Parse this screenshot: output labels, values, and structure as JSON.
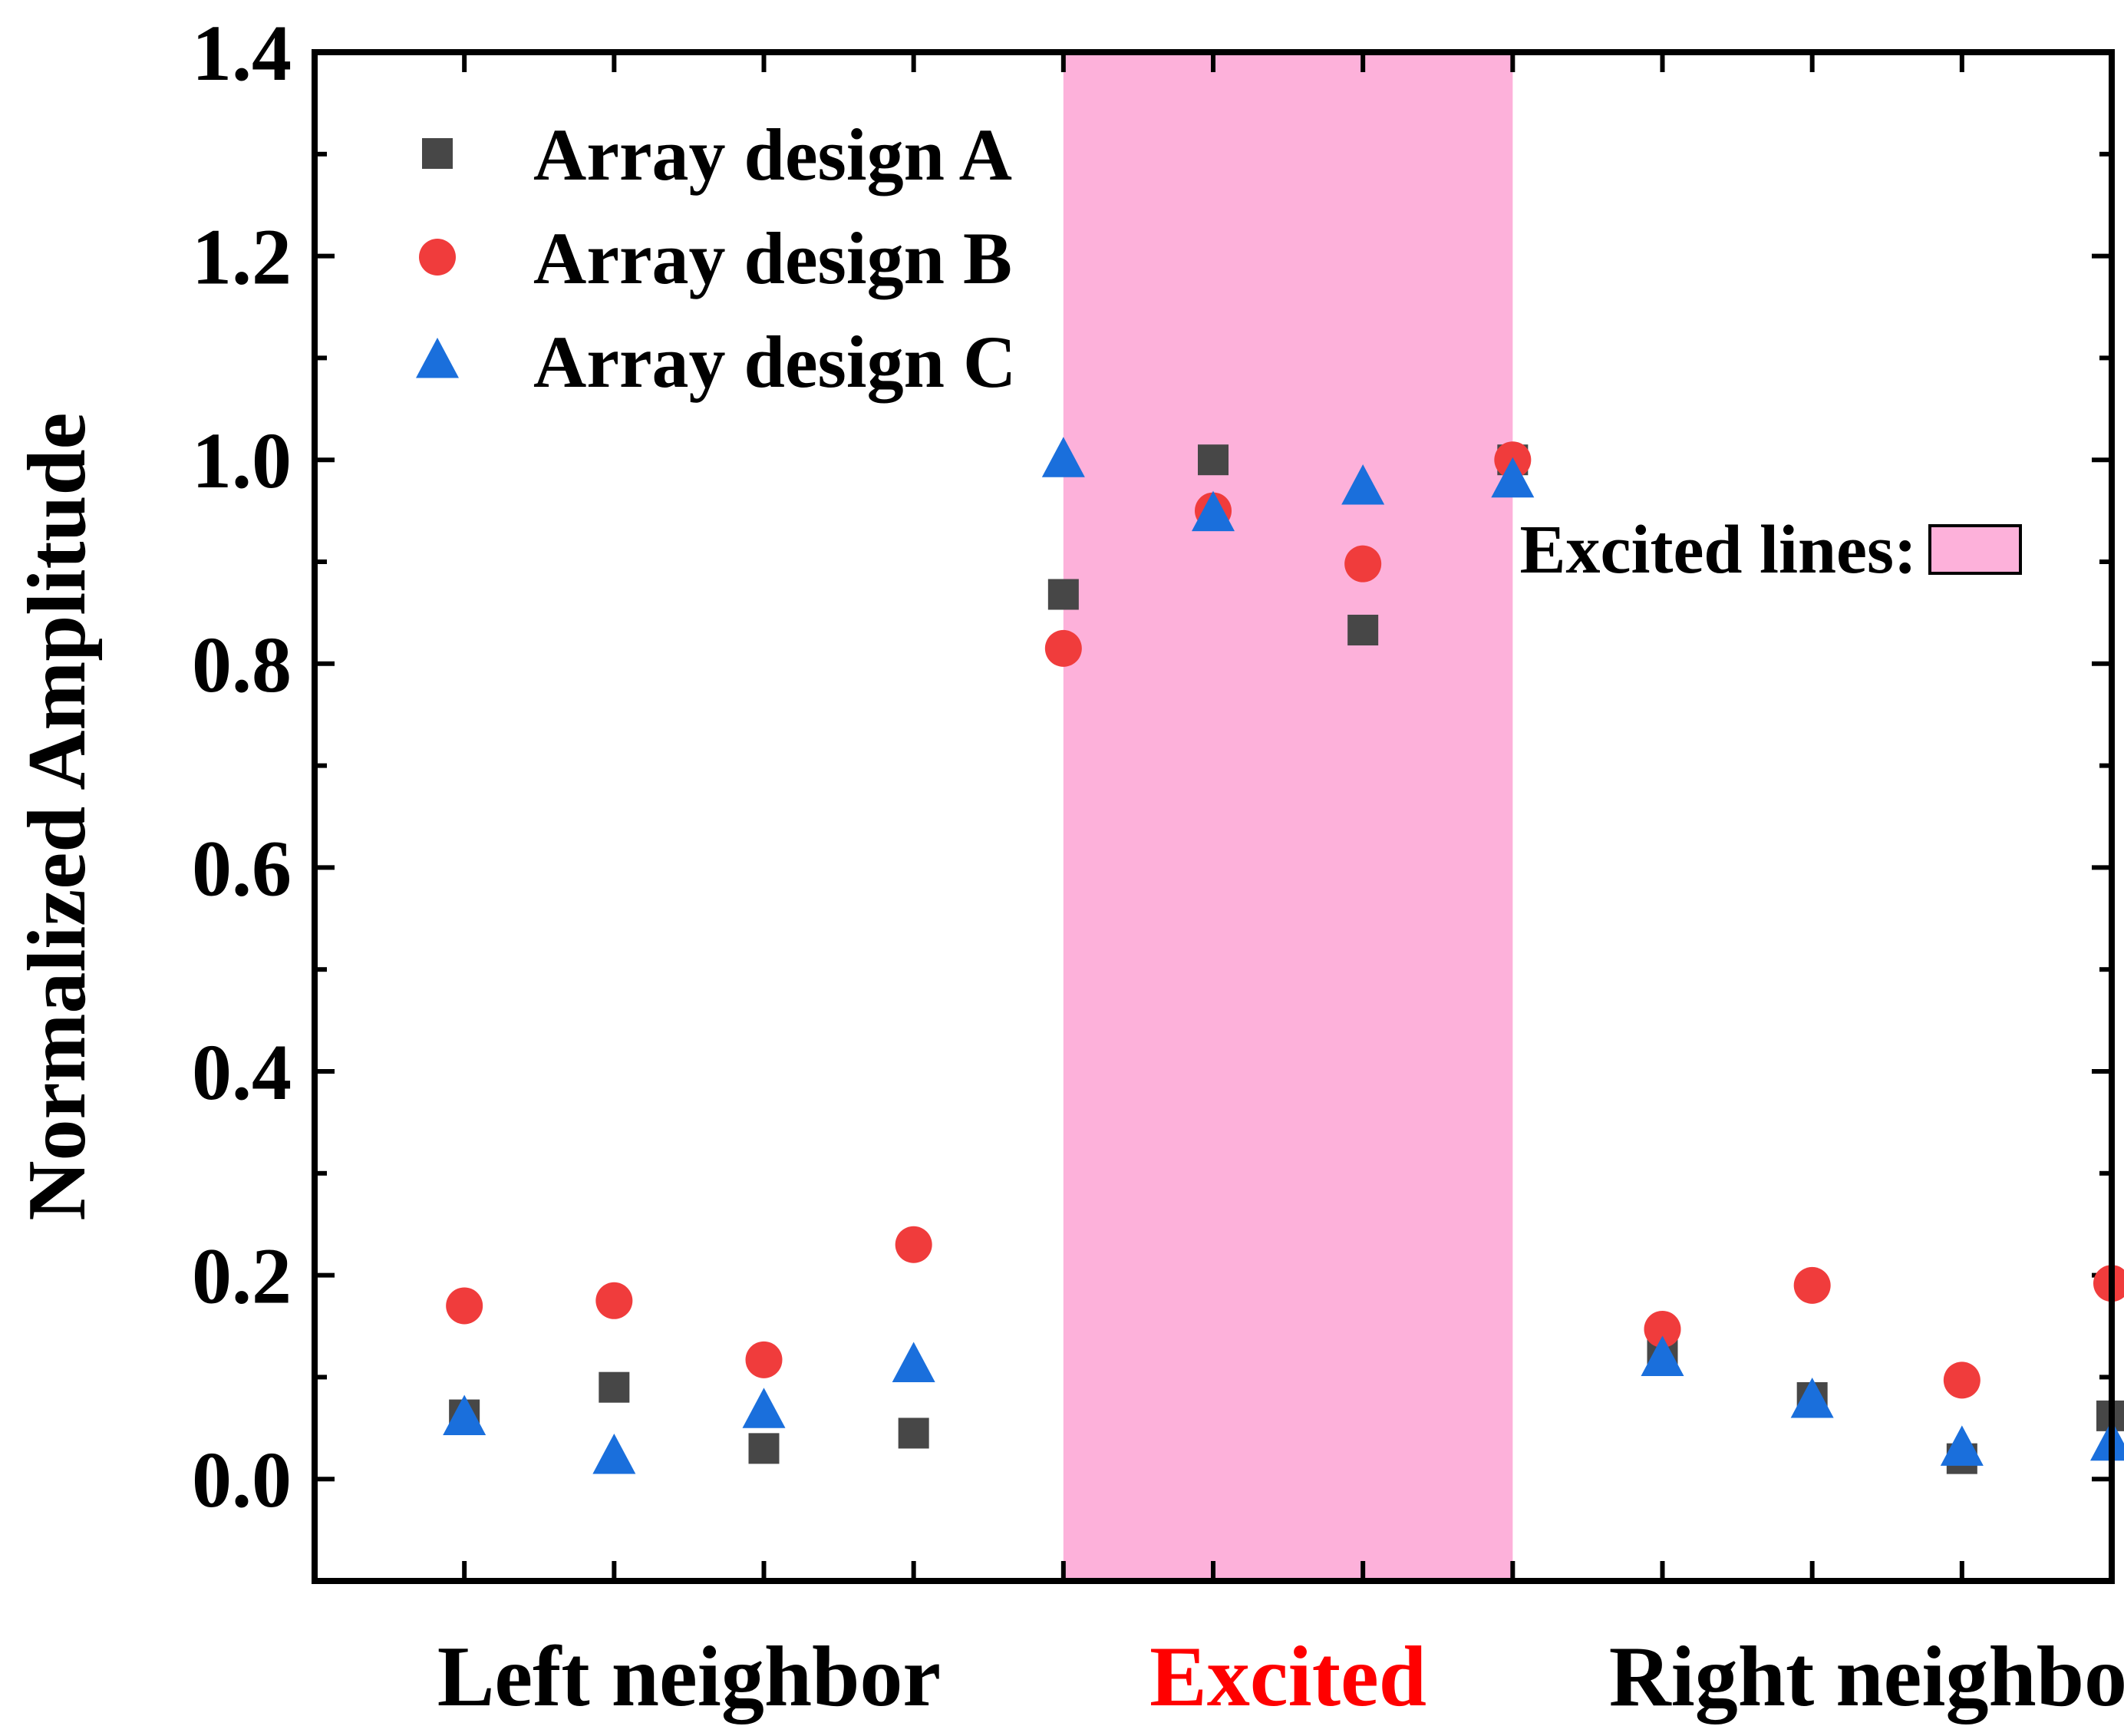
{
  "chart_data": {
    "type": "scatter",
    "title": "",
    "xlabel": "",
    "ylabel": "Normalized Amplitude",
    "ylim": [
      -0.1,
      1.4
    ],
    "xlim": [
      0,
      12
    ],
    "yticks": [
      "0.0",
      "0.2",
      "0.4",
      "0.6",
      "0.8",
      "1.0",
      "1.2",
      "1.4"
    ],
    "ytick_values": [
      0.0,
      0.2,
      0.4,
      0.6,
      0.8,
      1.0,
      1.2,
      1.4
    ],
    "y_minor_step": 0.1,
    "x": [
      1,
      2,
      3,
      4,
      5,
      6,
      7,
      8,
      9,
      10,
      11,
      12
    ],
    "excited_range": [
      5,
      8
    ],
    "group_labels": [
      {
        "text": "Left neighbor",
        "center": 2.5,
        "color": "#000000"
      },
      {
        "text": "Excited",
        "center": 6.5,
        "color": "#ff0000"
      },
      {
        "text": "Right neighbor",
        "center": 10.5,
        "color": "#000000"
      }
    ],
    "series": [
      {
        "name": "Array design A",
        "marker": "square",
        "color": "#474747",
        "values": [
          0.063,
          0.09,
          0.03,
          0.045,
          0.868,
          1.0,
          0.833,
          1.0,
          0.125,
          0.08,
          0.02,
          0.062
        ]
      },
      {
        "name": "Array design B",
        "marker": "circle",
        "color": "#f03c3c",
        "values": [
          0.17,
          0.175,
          0.117,
          0.23,
          0.815,
          0.95,
          0.898,
          1.0,
          0.147,
          0.19,
          0.097,
          0.192
        ]
      },
      {
        "name": "Array design C",
        "marker": "triangle",
        "color": "#1a6fdc",
        "values": [
          0.06,
          0.022,
          0.067,
          0.112,
          1.0,
          0.947,
          0.973,
          0.98,
          0.118,
          0.077,
          0.03,
          0.035
        ]
      }
    ],
    "legend": {
      "position": "top-left"
    },
    "excited_legend": {
      "label": "Excited lines:",
      "color": "#fdb1da",
      "position": "right"
    }
  }
}
